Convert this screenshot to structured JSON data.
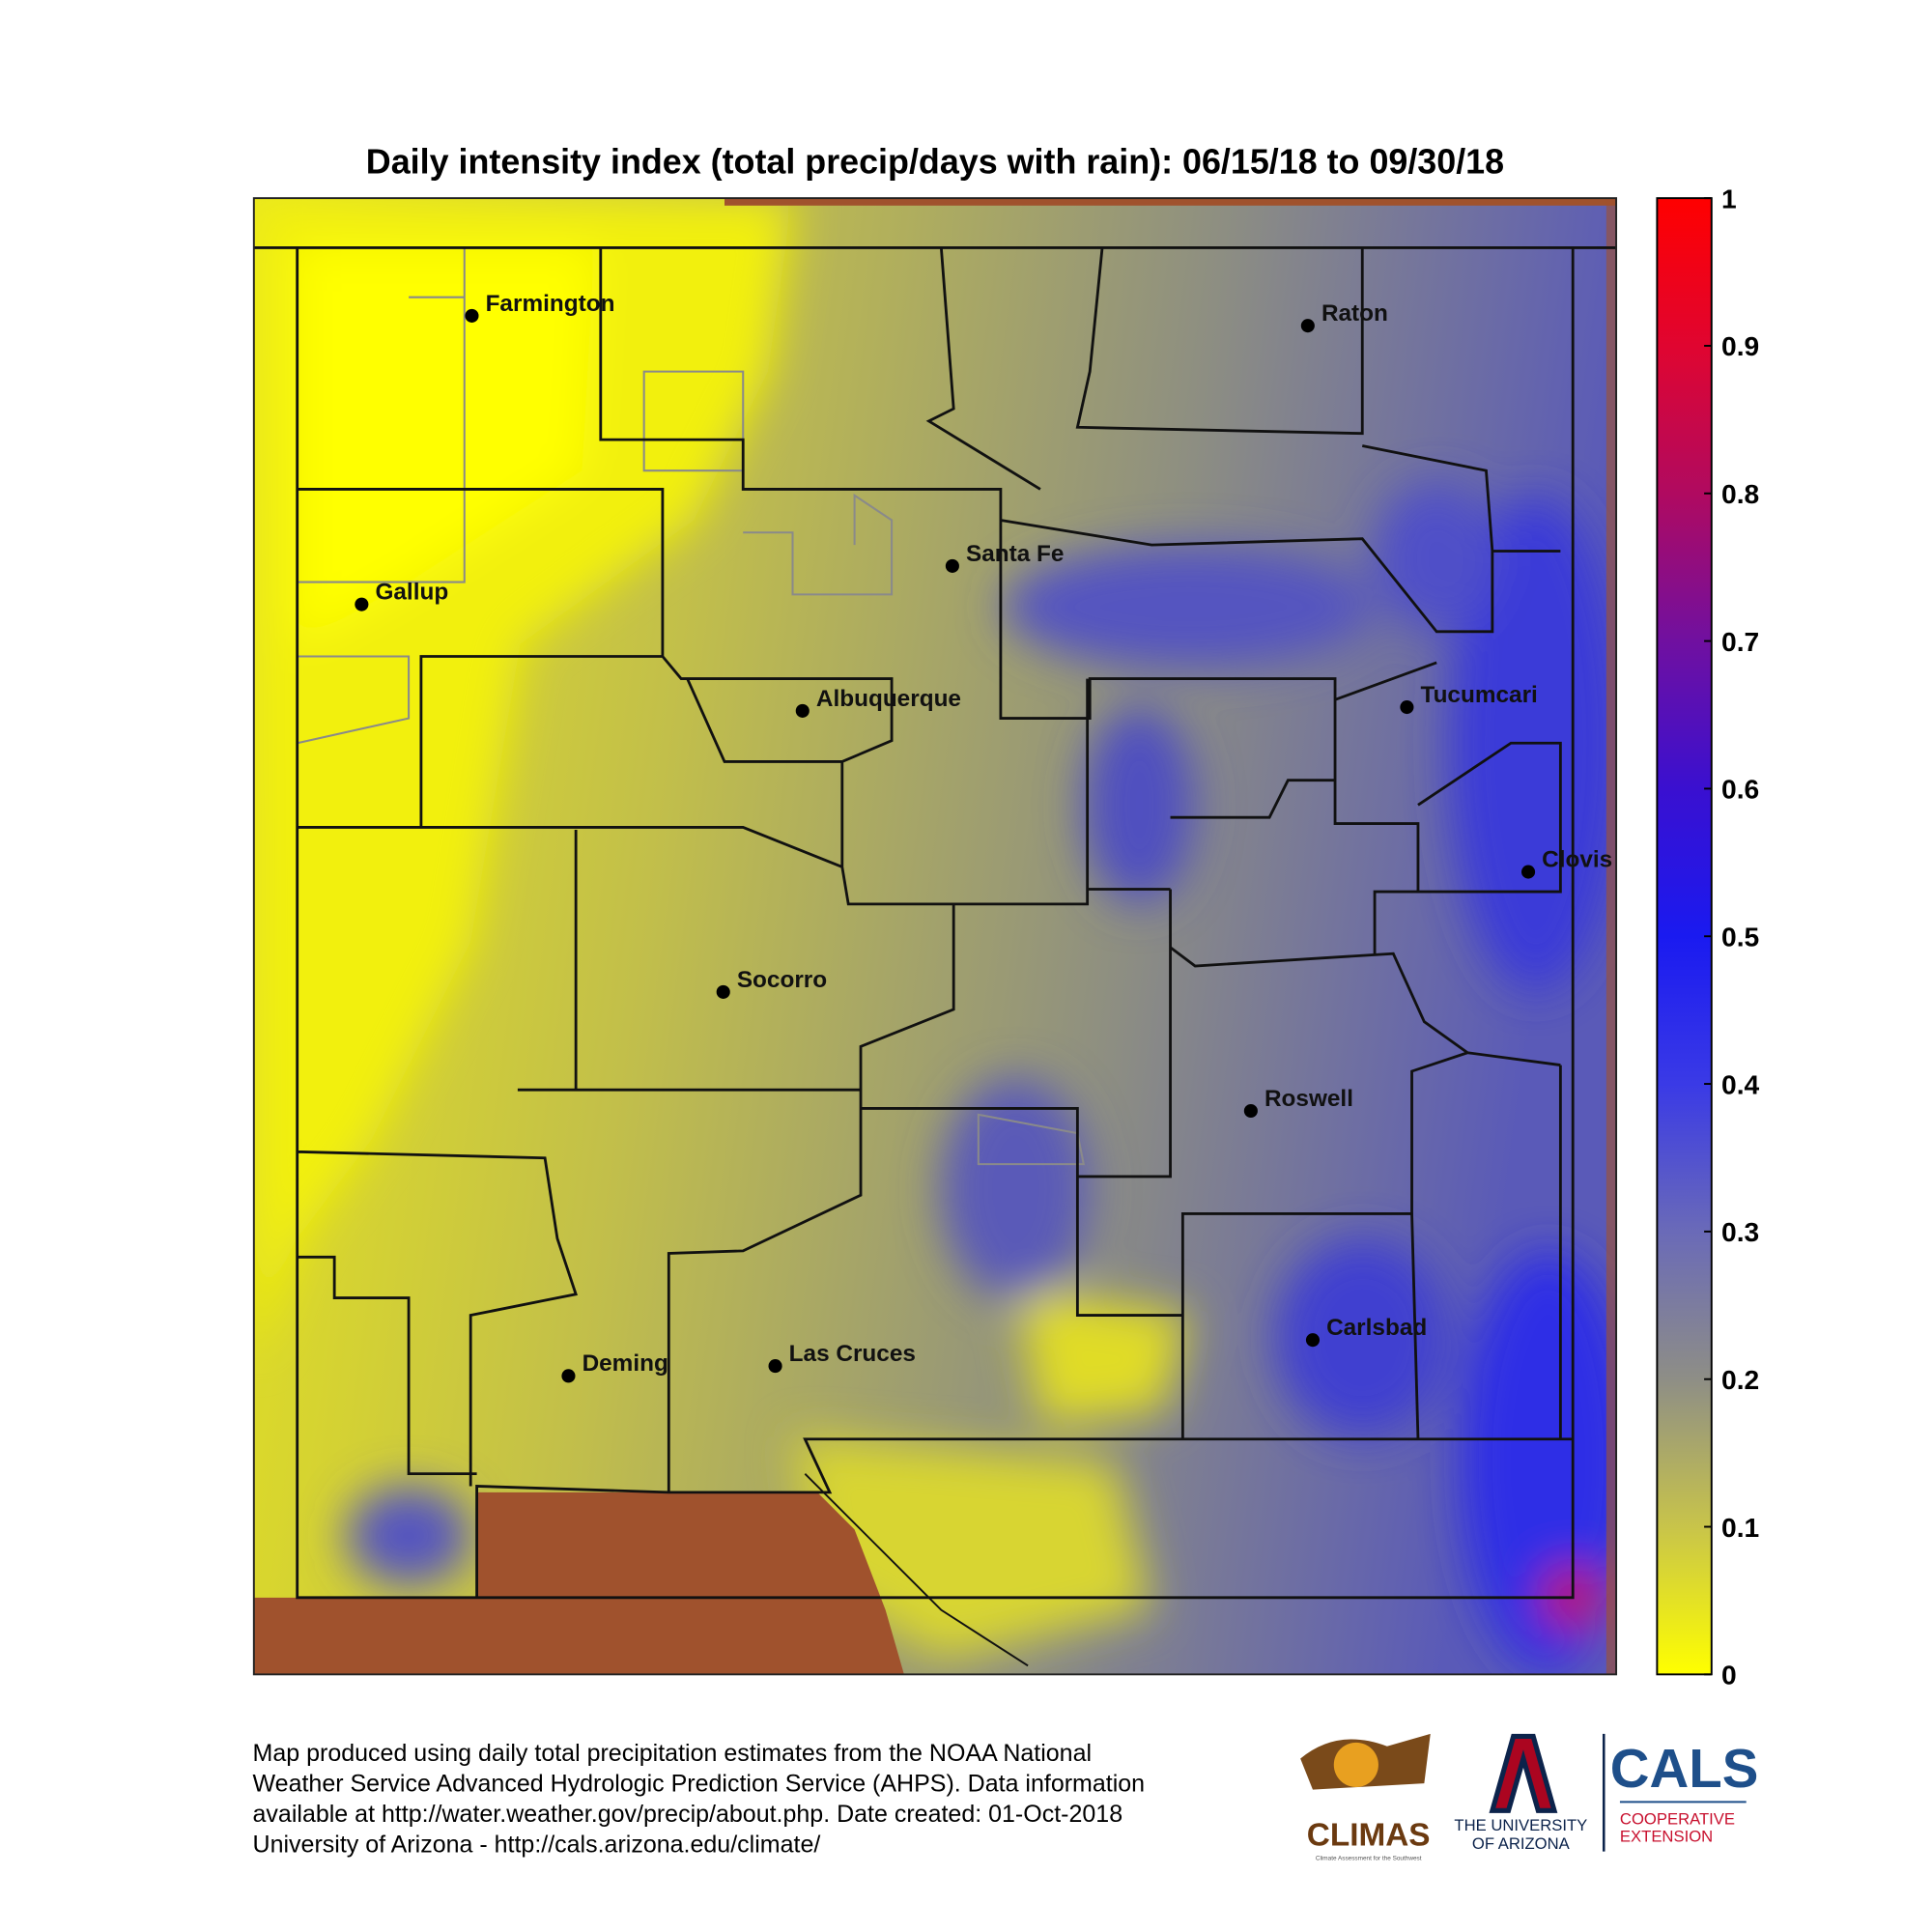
{
  "title": "Daily intensity index (total precip/days with rain): 06/15/18 to 09/30/18",
  "colorbar": {
    "ticks": [
      0,
      0.1,
      0.2,
      0.3,
      0.4,
      0.5,
      0.6,
      0.7,
      0.8,
      0.9,
      1
    ],
    "colors": [
      "#ffff00",
      "#c8c44a",
      "#8e8e86",
      "#6a6ab8",
      "#3a3ae6",
      "#1a1af0",
      "#3a10d0",
      "#7010a0",
      "#b00a60",
      "#e00530",
      "#ff0000"
    ]
  },
  "cities": [
    "Farmington",
    "Raton",
    "Santa Fe",
    "Gallup",
    "Albuquerque",
    "Tucumcari",
    "Clovis",
    "Socorro",
    "Roswell",
    "Carlsbad",
    "Deming",
    "Las Cruces"
  ],
  "footer": [
    "Map produced using daily total precipitation estimates from the NOAA National",
    "Weather Service Advanced Hydrologic Prediction Service (AHPS). Data information",
    "available at http://water.weather.gov/precip/about.php. Date created: 01-Oct-2018",
    "University of Arizona - http://cals.arizona.edu/climate/"
  ],
  "logos": {
    "climas": {
      "name": "CLIMAS",
      "tagline": "Climate Assessment for the Southwest"
    },
    "ua": {
      "lines": [
        "THE UNIVERSITY",
        "OF ARIZONA"
      ]
    },
    "cals": {
      "name": "CALS",
      "lines": [
        "COOPERATIVE",
        "EXTENSION"
      ]
    }
  }
}
